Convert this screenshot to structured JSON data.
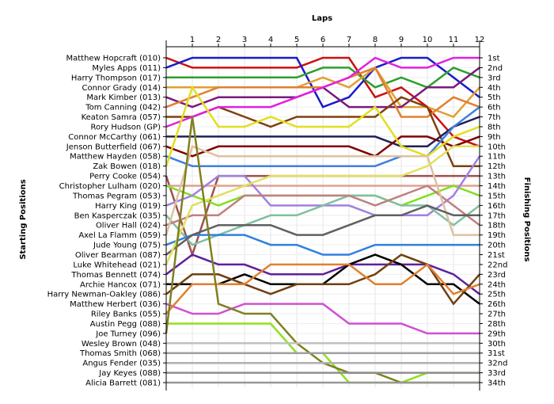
{
  "chart_data": {
    "type": "line",
    "xlabel": "Laps",
    "ylabel_left": "Starting Positions",
    "ylabel_right": "Finishing Positions",
    "x": [
      0,
      1,
      2,
      3,
      4,
      5,
      6,
      7,
      8,
      9,
      10,
      11,
      12
    ],
    "xlim": [
      0,
      12
    ],
    "ylim": [
      1,
      34
    ],
    "y_inverted": true,
    "grid": true,
    "tick_labels_x": [
      "1",
      "2",
      "3",
      "4",
      "5",
      "6",
      "7",
      "8",
      "9",
      "10",
      "11",
      "12"
    ],
    "drivers": [
      "Matthew Hopcraft (010)",
      "Myles Apps (011)",
      "Harry Thompson (017)",
      "Connor Grady (014)",
      "Mark Kimber (013)",
      "Tom Canning (042)",
      "Keaton Samra (057)",
      "Rory Hudson (GP)",
      "Connor McCarthy (061)",
      "Jenson Butterfield (067)",
      "Matthew Hayden (058)",
      "Zak Bowen (018)",
      "Perry Cooke (054)",
      "Christopher Lulham (020)",
      "Thomas Pegram (053)",
      "Harry King (019)",
      "Ben Kasperczak (035)",
      "Oliver Hall (024)",
      "Axel La Flamm (059)",
      "Jude Young (075)",
      "Oliver Bearman (087)",
      "Luke Whitehead (021)",
      "Thomas Bennett (074)",
      "Archie Hancox (071)",
      "Harry Newman-Oakley (086)",
      "Matthew Herbert (036)",
      "Riley Banks (055)",
      "Austin Pegg (088)",
      "Joe Turney (096)",
      "Wesley Brown (048)",
      "Thomas Smith (068)",
      "Angus Fender (035)",
      "Jay Keyes (088)",
      "Alicia Barrett (081)"
    ],
    "finishing_positions": [
      "1st",
      "2nd",
      "3rd",
      "4th",
      "5th",
      "6th",
      "7th",
      "8th",
      "9th",
      "10th",
      "11th",
      "12th",
      "13th",
      "14th",
      "15th",
      "16th",
      "17th",
      "18th",
      "19th",
      "20th",
      "21st",
      "22nd",
      "23rd",
      "24th",
      "25th",
      "26th",
      "27th",
      "28th",
      "29th",
      "30th",
      "31st",
      "32nd",
      "33rd",
      "34th"
    ],
    "series": [
      {
        "color": "#cc1010",
        "values": [
          1,
          2,
          2,
          2,
          2,
          2,
          1,
          1,
          5,
          4,
          6,
          9,
          10
        ]
      },
      {
        "color": "#1a1acc",
        "values": [
          2,
          1,
          1,
          1,
          1,
          1,
          6,
          5,
          2,
          1,
          1,
          3,
          5
        ]
      },
      {
        "color": "#2e9e2e",
        "values": [
          3,
          3,
          3,
          3,
          3,
          3,
          2,
          2,
          4,
          3,
          4,
          2,
          3
        ]
      },
      {
        "color": "#e0a030",
        "values": [
          4,
          4,
          4,
          4,
          4,
          4,
          3,
          4,
          2,
          6,
          6,
          7,
          4
        ]
      },
      {
        "color": "#7a1a7a",
        "values": [
          5,
          6,
          5,
          5,
          5,
          5,
          4,
          6,
          6,
          6,
          4,
          4,
          2
        ]
      },
      {
        "color": "#e08030",
        "values": [
          6,
          5,
          4,
          4,
          4,
          4,
          4,
          3,
          2,
          7,
          7,
          5,
          6
        ]
      },
      {
        "color": "#804010",
        "values": [
          7,
          7,
          6,
          7,
          8,
          7,
          7,
          7,
          7,
          5,
          6,
          12,
          12
        ]
      },
      {
        "color": "#e020e0",
        "values": [
          8,
          7,
          6,
          6,
          6,
          5,
          4,
          3,
          1,
          2,
          2,
          1,
          1
        ]
      },
      {
        "color": "#20205a",
        "values": [
          9,
          9,
          9,
          9,
          9,
          9,
          9,
          9,
          9,
          10,
          10,
          8,
          7
        ]
      },
      {
        "color": "#800000",
        "values": [
          10,
          11,
          10,
          10,
          10,
          10,
          10,
          10,
          11,
          9,
          9,
          10,
          9
        ]
      },
      {
        "color": "#4080e0",
        "values": [
          11,
          12,
          12,
          12,
          12,
          12,
          12,
          12,
          12,
          11,
          11,
          8,
          6
        ]
      },
      {
        "color": "#e0e020",
        "values": [
          12,
          4,
          8,
          8,
          7,
          8,
          8,
          8,
          6,
          10,
          11,
          9,
          8
        ]
      },
      {
        "color": "#a05050",
        "values": [
          13,
          21,
          13,
          13,
          13,
          13,
          13,
          13,
          13,
          13,
          13,
          13,
          13
        ]
      },
      {
        "color": "#e0a090",
        "values": [
          14,
          14,
          14,
          14,
          14,
          14,
          14,
          14,
          14,
          14,
          14,
          14,
          14
        ]
      },
      {
        "color": "#80e020",
        "values": [
          14,
          15,
          16,
          15,
          15,
          15,
          15,
          15,
          15,
          16,
          15,
          14,
          15
        ]
      },
      {
        "color": "#a080e0",
        "values": [
          16,
          15,
          13,
          13,
          16,
          16,
          16,
          16,
          17,
          17,
          17,
          15,
          11
        ]
      },
      {
        "color": "#80c0a0",
        "values": [
          17,
          20,
          19,
          18,
          17,
          17,
          16,
          15,
          15,
          16,
          16,
          18,
          16
        ]
      },
      {
        "color": "#c08080",
        "values": [
          18,
          17,
          17,
          15,
          15,
          15,
          15,
          15,
          16,
          15,
          14,
          16,
          18
        ]
      },
      {
        "color": "#e0c0a0",
        "values": [
          19,
          10,
          11,
          11,
          11,
          11,
          11,
          11,
          11,
          11,
          11,
          19,
          19
        ]
      },
      {
        "color": "#3080e0",
        "values": [
          20,
          19,
          19,
          19,
          20,
          20,
          21,
          21,
          20,
          20,
          20,
          20,
          20
        ]
      },
      {
        "color": "#606060",
        "values": [
          21,
          19,
          18,
          18,
          18,
          19,
          19,
          18,
          17,
          17,
          16,
          17,
          17
        ]
      },
      {
        "color": "#e0e060",
        "values": [
          22,
          16,
          15,
          14,
          13,
          13,
          13,
          13,
          13,
          13,
          12,
          10,
          10
        ]
      },
      {
        "color": "#60209a",
        "values": [
          23,
          21,
          22,
          22,
          23,
          23,
          23,
          22,
          22,
          22,
          22,
          23,
          25
        ]
      },
      {
        "color": "#000000",
        "values": [
          24,
          24,
          24,
          23,
          24,
          24,
          24,
          22,
          21,
          22,
          24,
          24,
          26
        ]
      },
      {
        "color": "#704010",
        "values": [
          25,
          23,
          23,
          24,
          25,
          24,
          24,
          24,
          23,
          21,
          22,
          26,
          23
        ]
      },
      {
        "color": "#d050d0",
        "values": [
          26,
          27,
          27,
          26,
          26,
          26,
          26,
          28,
          28,
          28,
          29,
          29,
          29
        ]
      },
      {
        "color": "#e08030",
        "values": [
          27,
          24,
          24,
          24,
          22,
          22,
          22,
          22,
          24,
          24,
          22,
          25,
          24
        ]
      },
      {
        "color": "#90e020",
        "values": [
          28,
          28,
          28,
          28,
          28,
          31,
          31,
          34,
          34,
          34,
          33,
          33,
          33
        ]
      },
      {
        "color": "#808020",
        "values": [
          29,
          7,
          26,
          27,
          27,
          30,
          32,
          33,
          33,
          34,
          34,
          34,
          34
        ]
      },
      {
        "color": "#c0c0c0",
        "values": [
          30,
          30,
          30,
          30,
          30,
          30,
          30,
          30,
          30,
          30,
          30,
          30,
          30
        ]
      },
      {
        "color": "#a0a0a0",
        "values": [
          31,
          31,
          31,
          31,
          31,
          31,
          31,
          31,
          31,
          31,
          31,
          31,
          31
        ]
      },
      {
        "color": "#b0b0b0",
        "values": [
          32,
          32,
          32,
          32,
          32,
          32,
          32,
          32,
          32,
          32,
          32,
          32,
          32
        ]
      },
      {
        "color": "#909090",
        "values": [
          33,
          33,
          33,
          33,
          33,
          33,
          33,
          33,
          33,
          33,
          33,
          33,
          33
        ]
      },
      {
        "color": "#989898",
        "values": [
          34,
          34,
          34,
          34,
          34,
          34,
          34,
          34,
          34,
          34,
          34,
          34,
          34
        ]
      }
    ]
  }
}
